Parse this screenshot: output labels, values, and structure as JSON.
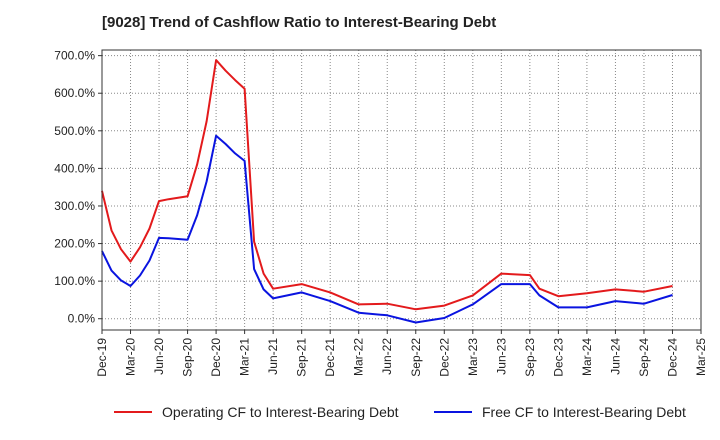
{
  "chart_data": {
    "type": "line",
    "title": "[9028]  Trend of Cashflow Ratio to Interest-Bearing Debt",
    "xlabel": "",
    "ylabel": "",
    "x_ticks": [
      "Dec-19",
      "Mar-20",
      "Jun-20",
      "Sep-20",
      "Dec-20",
      "Mar-21",
      "Jun-21",
      "Sep-21",
      "Dec-21",
      "Mar-22",
      "Jun-22",
      "Sep-22",
      "Dec-22",
      "Mar-23",
      "Jun-23",
      "Sep-23",
      "Dec-23",
      "Mar-24",
      "Jun-24",
      "Sep-24",
      "Dec-24",
      "Mar-25"
    ],
    "y_ticks": [
      "0.0%",
      "100.0%",
      "200.0%",
      "300.0%",
      "400.0%",
      "500.0%",
      "600.0%",
      "700.0%"
    ],
    "ylim": [
      -30,
      715
    ],
    "xlim": [
      "2019-12",
      "2025-03"
    ],
    "grid": true,
    "legend_position": "bottom",
    "series": [
      {
        "name": "Operating CF to Interest-Bearing Debt",
        "color": "#e31a1c",
        "points": [
          [
            "2019-12",
            340
          ],
          [
            "2020-01",
            235
          ],
          [
            "2020-02",
            185
          ],
          [
            "2020-03",
            152
          ],
          [
            "2020-04",
            190
          ],
          [
            "2020-05",
            240
          ],
          [
            "2020-06",
            313
          ],
          [
            "2020-07",
            318
          ],
          [
            "2020-08",
            322
          ],
          [
            "2020-09",
            326
          ],
          [
            "2020-10",
            410
          ],
          [
            "2020-11",
            525
          ],
          [
            "2020-12",
            688
          ],
          [
            "2021-01",
            660
          ],
          [
            "2021-02",
            635
          ],
          [
            "2021-03",
            612
          ],
          [
            "2021-04",
            205
          ],
          [
            "2021-05",
            120
          ],
          [
            "2021-06",
            80
          ],
          [
            "2021-09",
            92
          ],
          [
            "2021-12",
            70
          ],
          [
            "2022-03",
            38
          ],
          [
            "2022-06",
            40
          ],
          [
            "2022-09",
            25
          ],
          [
            "2022-12",
            35
          ],
          [
            "2023-03",
            62
          ],
          [
            "2023-06",
            120
          ],
          [
            "2023-09",
            116
          ],
          [
            "2023-10",
            80
          ],
          [
            "2023-12",
            60
          ],
          [
            "2024-03",
            68
          ],
          [
            "2024-06",
            78
          ],
          [
            "2024-09",
            72
          ],
          [
            "2024-12",
            87
          ]
        ]
      },
      {
        "name": "Free CF to Interest-Bearing Debt",
        "color": "#0a14e0",
        "points": [
          [
            "2019-12",
            180
          ],
          [
            "2020-01",
            128
          ],
          [
            "2020-02",
            102
          ],
          [
            "2020-03",
            87
          ],
          [
            "2020-04",
            115
          ],
          [
            "2020-05",
            155
          ],
          [
            "2020-06",
            215
          ],
          [
            "2020-07",
            214
          ],
          [
            "2020-08",
            212
          ],
          [
            "2020-09",
            210
          ],
          [
            "2020-10",
            275
          ],
          [
            "2020-11",
            365
          ],
          [
            "2020-12",
            487
          ],
          [
            "2021-01",
            465
          ],
          [
            "2021-02",
            440
          ],
          [
            "2021-03",
            420
          ],
          [
            "2021-04",
            132
          ],
          [
            "2021-05",
            78
          ],
          [
            "2021-06",
            54
          ],
          [
            "2021-09",
            70
          ],
          [
            "2021-12",
            47
          ],
          [
            "2022-03",
            16
          ],
          [
            "2022-06",
            9
          ],
          [
            "2022-09",
            -10
          ],
          [
            "2022-12",
            2
          ],
          [
            "2023-03",
            38
          ],
          [
            "2023-06",
            92
          ],
          [
            "2023-09",
            92
          ],
          [
            "2023-10",
            62
          ],
          [
            "2023-12",
            30
          ],
          [
            "2024-03",
            30
          ],
          [
            "2024-06",
            47
          ],
          [
            "2024-09",
            40
          ],
          [
            "2024-12",
            63
          ]
        ]
      }
    ]
  }
}
